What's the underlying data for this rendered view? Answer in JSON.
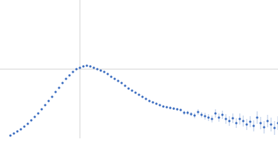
{
  "chart_data": {
    "type": "scatter",
    "color": "#3a6cc0",
    "grid": true,
    "xlim": [
      0,
      400
    ],
    "ylim": [
      0,
      200
    ],
    "xticks": [
      115
    ],
    "yticks": [
      100
    ],
    "x": [
      15,
      20,
      25,
      30,
      35,
      40,
      45,
      50,
      55,
      60,
      65,
      70,
      75,
      80,
      85,
      90,
      95,
      100,
      105,
      110,
      115,
      120,
      125,
      130,
      135,
      140,
      145,
      150,
      155,
      160,
      165,
      170,
      175,
      180,
      185,
      190,
      195,
      200,
      205,
      210,
      215,
      220,
      225,
      230,
      235,
      240,
      245,
      250,
      255,
      260,
      265,
      270,
      275,
      280,
      285,
      290,
      295,
      300,
      305,
      310,
      315,
      320,
      325,
      330,
      335,
      340,
      345,
      350,
      355,
      360,
      365,
      370,
      375,
      380,
      385,
      390,
      395,
      400
    ],
    "values": [
      4,
      7,
      10,
      13,
      17,
      21,
      26,
      31,
      36,
      42,
      48,
      54,
      60,
      67,
      73,
      80,
      86,
      91,
      96,
      100,
      102,
      104,
      105,
      104,
      102,
      100,
      98,
      96,
      93,
      89,
      86,
      83,
      80,
      76,
      72,
      69,
      66,
      63,
      60,
      57,
      54,
      52,
      50,
      48,
      46,
      45,
      44,
      43,
      42,
      41,
      37,
      37,
      35,
      33,
      38,
      34,
      32,
      30,
      28,
      36,
      30,
      34,
      28,
      25,
      29,
      22,
      28,
      25,
      20,
      24,
      18,
      30,
      22,
      16,
      25,
      20,
      15,
      22
    ],
    "errors": [
      1,
      1,
      1,
      1,
      1,
      1,
      1,
      1,
      1,
      1,
      1,
      1,
      1,
      1,
      1,
      1,
      1,
      1,
      1,
      1,
      1,
      1,
      1,
      1,
      1,
      1,
      1,
      1,
      1,
      1,
      1,
      1,
      1,
      1,
      1,
      1,
      1,
      1,
      1,
      1,
      1,
      1,
      1,
      1,
      1,
      1,
      2,
      2,
      2,
      2,
      3,
      3,
      3,
      4,
      4,
      4,
      5,
      5,
      5,
      6,
      6,
      6,
      7,
      7,
      7,
      7,
      8,
      8,
      8,
      8,
      8,
      9,
      9,
      9,
      9,
      10,
      10,
      10
    ]
  }
}
